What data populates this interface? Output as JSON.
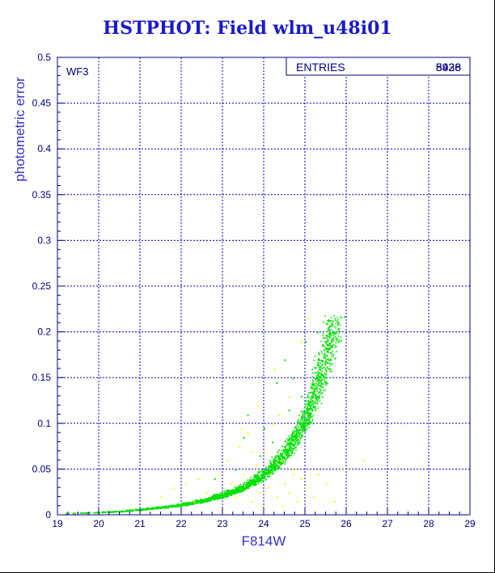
{
  "chart_data": {
    "type": "scatter",
    "title": "HSTPHOT: Field wlm_u48i01",
    "xlabel": "F814W",
    "ylabel": "photometric error",
    "xlim": [
      19,
      29
    ],
    "ylim": [
      0,
      0.5
    ],
    "xticks": [
      "19",
      "20",
      "21",
      "22",
      "23",
      "24",
      "25",
      "26",
      "27",
      "28",
      "29"
    ],
    "yticks": [
      "0",
      "0.05",
      "0.1",
      "0.15",
      "0.2",
      "0.25",
      "0.3",
      "0.35",
      "0.4",
      "0.45",
      "0.5"
    ],
    "grid": true,
    "panel_label": "WF3",
    "stats_box": {
      "label": "ENTRIES",
      "values": [
        "8938",
        "5426"
      ]
    },
    "series": [
      {
        "color": "#00e000",
        "trend": [
          [
            19.2,
            0.002
          ],
          [
            20.0,
            0.003
          ],
          [
            20.5,
            0.004
          ],
          [
            21.0,
            0.006
          ],
          [
            21.5,
            0.008
          ],
          [
            22.0,
            0.011
          ],
          [
            22.5,
            0.015
          ],
          [
            23.0,
            0.021
          ],
          [
            23.5,
            0.029
          ],
          [
            24.0,
            0.042
          ],
          [
            24.4,
            0.057
          ],
          [
            24.8,
            0.079
          ],
          [
            25.1,
            0.103
          ],
          [
            25.4,
            0.134
          ],
          [
            25.6,
            0.16
          ],
          [
            25.8,
            0.19
          ],
          [
            25.95,
            0.217
          ]
        ],
        "outliers": [
          [
            23.6,
            0.11
          ],
          [
            24.0,
            0.095
          ],
          [
            24.5,
            0.17
          ],
          [
            24.7,
            0.15
          ],
          [
            25.0,
            0.19
          ],
          [
            23.9,
            0.065
          ],
          [
            24.2,
            0.08
          ],
          [
            25.3,
            0.2
          ],
          [
            24.9,
            0.13
          ],
          [
            23.3,
            0.05
          ],
          [
            22.8,
            0.04
          ],
          [
            24.6,
            0.115
          ],
          [
            23.5,
            0.085
          ],
          [
            25.5,
            0.21
          ],
          [
            24.3,
            0.145
          ]
        ]
      },
      {
        "color": "#ffff00",
        "points": [
          [
            21.5,
            0.02
          ],
          [
            21.8,
            0.03
          ],
          [
            22.1,
            0.035
          ],
          [
            22.4,
            0.04
          ],
          [
            22.6,
            0.025
          ],
          [
            22.9,
            0.045
          ],
          [
            23.1,
            0.06
          ],
          [
            23.2,
            0.035
          ],
          [
            23.3,
            0.02
          ],
          [
            23.4,
            0.075
          ],
          [
            23.5,
            0.045
          ],
          [
            23.6,
            0.09
          ],
          [
            23.7,
            0.015
          ],
          [
            23.8,
            0.055
          ],
          [
            23.9,
            0.025
          ],
          [
            24.0,
            0.07
          ],
          [
            24.1,
            0.03
          ],
          [
            24.2,
            0.1
          ],
          [
            24.3,
            0.02
          ],
          [
            24.4,
            0.06
          ],
          [
            24.5,
            0.035
          ],
          [
            24.6,
            0.025
          ],
          [
            24.7,
            0.05
          ],
          [
            24.8,
            0.015
          ],
          [
            24.9,
            0.04
          ],
          [
            25.0,
            0.03
          ],
          [
            25.2,
            0.02
          ],
          [
            25.3,
            0.045
          ],
          [
            25.5,
            0.035
          ],
          [
            25.7,
            0.015
          ],
          [
            23.85,
            0.12
          ],
          [
            24.25,
            0.16
          ],
          [
            24.6,
            0.13
          ],
          [
            25.05,
            0.215
          ],
          [
            24.9,
            0.19
          ],
          [
            23.45,
            0.095
          ],
          [
            24.7,
            0.045
          ],
          [
            24.45,
            0.01
          ],
          [
            23.95,
            0.01
          ],
          [
            24.15,
            0.045
          ],
          [
            26.4,
            0.06
          ],
          [
            25.9,
            0.05
          ],
          [
            23.7,
            0.07
          ],
          [
            22.3,
            0.015
          ],
          [
            24.35,
            0.11
          ]
        ]
      }
    ]
  },
  "colors": {
    "axis": "#000080",
    "grid": "#0000cc",
    "title": "#1a1acc"
  }
}
